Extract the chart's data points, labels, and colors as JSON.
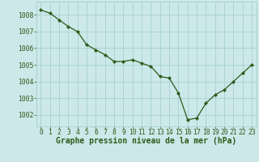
{
  "x": [
    0,
    1,
    2,
    3,
    4,
    5,
    6,
    7,
    8,
    9,
    10,
    11,
    12,
    13,
    14,
    15,
    16,
    17,
    18,
    19,
    20,
    21,
    22,
    23
  ],
  "y": [
    1008.3,
    1008.1,
    1007.7,
    1007.3,
    1007.0,
    1006.2,
    1005.9,
    1005.6,
    1005.2,
    1005.2,
    1005.3,
    1005.1,
    1004.9,
    1004.3,
    1004.2,
    1003.3,
    1001.7,
    1001.8,
    1002.7,
    1003.2,
    1003.5,
    1004.0,
    1004.5,
    1005.0
  ],
  "line_color": "#2d5a1b",
  "marker_color": "#2d5a1b",
  "bg_color": "#cce8e8",
  "grid_color": "#aad4d4",
  "ylabel_ticks": [
    1002,
    1003,
    1004,
    1005,
    1006,
    1007,
    1008
  ],
  "xlabel_label": "Graphe pression niveau de la mer (hPa)",
  "xtick_labels": [
    "0",
    "1",
    "2",
    "3",
    "4",
    "5",
    "6",
    "7",
    "8",
    "9",
    "10",
    "11",
    "12",
    "13",
    "14",
    "15",
    "16",
    "17",
    "18",
    "19",
    "20",
    "21",
    "22",
    "23"
  ],
  "ylim": [
    1001.3,
    1008.8
  ],
  "xlim": [
    -0.5,
    23.5
  ],
  "xlabel_color": "#2d5a1b",
  "tick_color": "#2d5a1b",
  "label_fontsize": 7.0,
  "tick_fontsize": 5.8
}
